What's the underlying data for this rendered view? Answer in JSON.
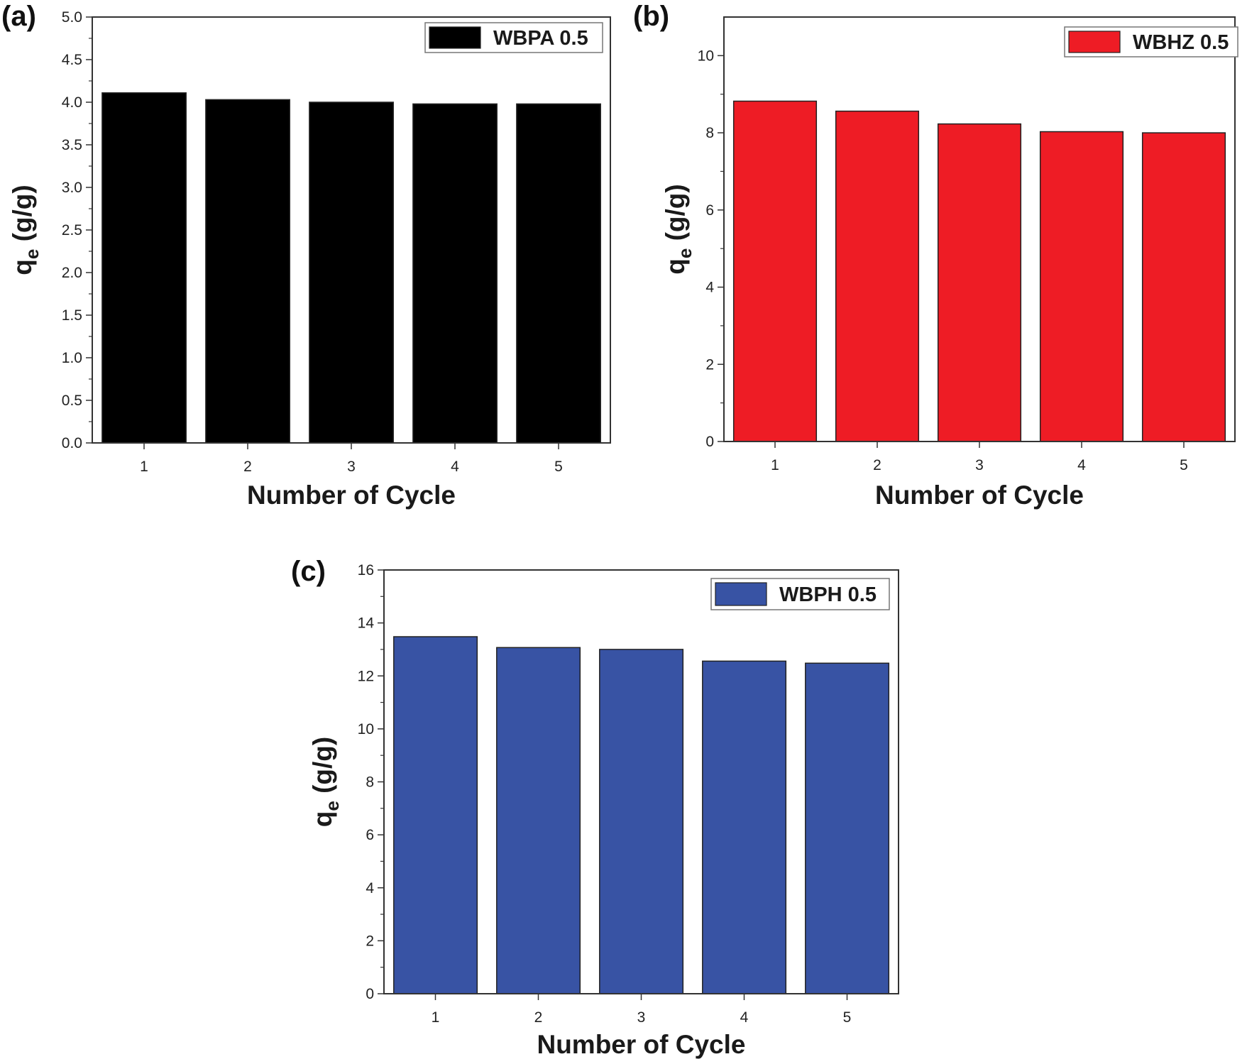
{
  "chart_data": [
    {
      "panel_label": "(a)",
      "type": "bar",
      "categories": [
        "1",
        "2",
        "3",
        "4",
        "5"
      ],
      "series": [
        {
          "name": "WBPA 0.5",
          "values": [
            4.11,
            4.03,
            4.0,
            3.98,
            3.98
          ]
        }
      ],
      "color": "#000000",
      "xlabel": "Number of Cycle",
      "ylabel_main": "q",
      "ylabel_sub": "e",
      "ylabel_unit": " (g/g)",
      "ylim": [
        0,
        5.0
      ],
      "yticks": [
        "0.0",
        "0.5",
        "1.0",
        "1.5",
        "2.0",
        "2.5",
        "3.0",
        "3.5",
        "4.0",
        "4.5",
        "5.0"
      ],
      "legend": "top-right",
      "grid": false
    },
    {
      "panel_label": "(b)",
      "type": "bar",
      "categories": [
        "1",
        "2",
        "3",
        "4",
        "5"
      ],
      "series": [
        {
          "name": "WBHZ 0.5",
          "values": [
            8.82,
            8.56,
            8.23,
            8.03,
            8.0
          ]
        }
      ],
      "color": "#ee1c25",
      "xlabel": "Number of Cycle",
      "ylabel_main": "q",
      "ylabel_sub": "e",
      "ylabel_unit": " (g/g)",
      "ylim": [
        0,
        11
      ],
      "yticks": [
        "0",
        "2",
        "4",
        "6",
        "8",
        "10"
      ],
      "legend": "top-right",
      "grid": false
    },
    {
      "panel_label": "(c)",
      "type": "bar",
      "categories": [
        "1",
        "2",
        "3",
        "4",
        "5"
      ],
      "series": [
        {
          "name": "WBPH 0.5",
          "values": [
            13.48,
            13.07,
            13.0,
            12.56,
            12.48
          ]
        }
      ],
      "color": "#3853a4",
      "xlabel": "Number of Cycle",
      "ylabel_main": "q",
      "ylabel_sub": "e",
      "ylabel_unit": " (g/g)",
      "ylim": [
        0,
        16
      ],
      "yticks": [
        "0",
        "2",
        "4",
        "6",
        "8",
        "10",
        "12",
        "14",
        "16"
      ],
      "legend": "top-right",
      "grid": false
    }
  ]
}
